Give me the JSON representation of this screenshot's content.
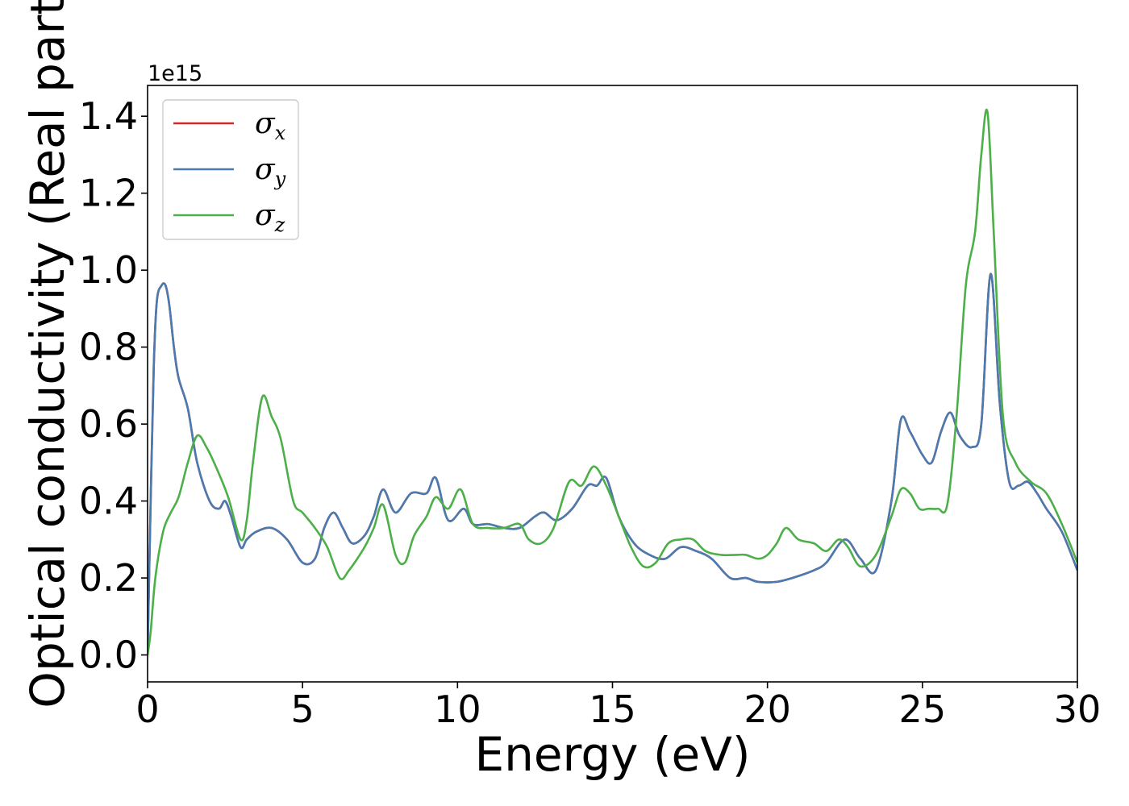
{
  "chart_data": {
    "type": "line",
    "title": "",
    "xlabel": "Energy (eV)",
    "ylabel": "Optical conductivity (Real part)",
    "y_offset_text": "1e15",
    "xlim": [
      0,
      30
    ],
    "ylim": [
      -0.07,
      1.48
    ],
    "x_ticks": [
      0,
      5,
      10,
      15,
      20,
      25,
      30
    ],
    "x_tick_labels": [
      "0",
      "5",
      "10",
      "15",
      "20",
      "25",
      "30"
    ],
    "y_ticks": [
      0.0,
      0.2,
      0.4,
      0.6,
      0.8,
      1.0,
      1.2,
      1.4
    ],
    "y_tick_labels": [
      "0.0",
      "0.2",
      "0.4",
      "0.6",
      "0.8",
      "1.0",
      "1.2",
      "1.4"
    ],
    "grid": false,
    "legend_position": "top-left",
    "series": [
      {
        "name": "σx",
        "legend_symbol": "σ",
        "legend_sub": "x",
        "color": "#d62728",
        "x": [
          0,
          0.1,
          0.2,
          0.3,
          0.45,
          0.58,
          0.7,
          0.85,
          1.0,
          1.3,
          1.6,
          2.0,
          2.3,
          2.5,
          2.7,
          3.0,
          3.2,
          3.5,
          4.0,
          4.5,
          5.0,
          5.4,
          5.7,
          6.0,
          6.3,
          6.6,
          7.0,
          7.3,
          7.6,
          8.0,
          8.5,
          9.0,
          9.3,
          9.7,
          10.2,
          10.5,
          11.0,
          11.5,
          12.0,
          12.5,
          12.8,
          13.2,
          13.7,
          14.2,
          14.5,
          14.8,
          15.2,
          15.7,
          16.2,
          16.7,
          17.2,
          17.7,
          18.2,
          18.8,
          19.3,
          19.7,
          20.3,
          20.8,
          21.5,
          21.9,
          22.5,
          23.0,
          23.5,
          24.0,
          24.3,
          24.6,
          25.0,
          25.3,
          25.6,
          25.9,
          26.2,
          26.6,
          26.9,
          27.2,
          27.5,
          27.8,
          28.1,
          28.4,
          28.7,
          29.0,
          29.5,
          30.0
        ],
        "values": [
          0.0,
          0.4,
          0.75,
          0.92,
          0.96,
          0.96,
          0.91,
          0.8,
          0.72,
          0.64,
          0.5,
          0.4,
          0.38,
          0.4,
          0.36,
          0.28,
          0.3,
          0.32,
          0.33,
          0.3,
          0.24,
          0.25,
          0.33,
          0.37,
          0.33,
          0.29,
          0.31,
          0.36,
          0.43,
          0.37,
          0.42,
          0.42,
          0.46,
          0.35,
          0.38,
          0.34,
          0.34,
          0.33,
          0.33,
          0.36,
          0.37,
          0.35,
          0.38,
          0.44,
          0.44,
          0.46,
          0.36,
          0.29,
          0.26,
          0.25,
          0.28,
          0.27,
          0.25,
          0.2,
          0.2,
          0.19,
          0.19,
          0.2,
          0.22,
          0.24,
          0.3,
          0.25,
          0.22,
          0.4,
          0.61,
          0.58,
          0.52,
          0.5,
          0.58,
          0.63,
          0.57,
          0.54,
          0.6,
          0.99,
          0.65,
          0.45,
          0.44,
          0.45,
          0.42,
          0.38,
          0.32,
          0.22
        ]
      },
      {
        "name": "σy",
        "legend_symbol": "σ",
        "legend_sub": "y",
        "color": "#4a7bb0",
        "x": [
          0,
          0.1,
          0.2,
          0.3,
          0.45,
          0.58,
          0.7,
          0.85,
          1.0,
          1.3,
          1.6,
          2.0,
          2.3,
          2.5,
          2.7,
          3.0,
          3.2,
          3.5,
          4.0,
          4.5,
          5.0,
          5.4,
          5.7,
          6.0,
          6.3,
          6.6,
          7.0,
          7.3,
          7.6,
          8.0,
          8.5,
          9.0,
          9.3,
          9.7,
          10.2,
          10.5,
          11.0,
          11.5,
          12.0,
          12.5,
          12.8,
          13.2,
          13.7,
          14.2,
          14.5,
          14.8,
          15.2,
          15.7,
          16.2,
          16.7,
          17.2,
          17.7,
          18.2,
          18.8,
          19.3,
          19.7,
          20.3,
          20.8,
          21.5,
          21.9,
          22.5,
          23.0,
          23.5,
          24.0,
          24.3,
          24.6,
          25.0,
          25.3,
          25.6,
          25.9,
          26.2,
          26.6,
          26.9,
          27.2,
          27.5,
          27.8,
          28.1,
          28.4,
          28.7,
          29.0,
          29.5,
          30.0
        ],
        "values": [
          0.0,
          0.4,
          0.75,
          0.92,
          0.96,
          0.96,
          0.91,
          0.8,
          0.72,
          0.64,
          0.5,
          0.4,
          0.38,
          0.4,
          0.36,
          0.28,
          0.3,
          0.32,
          0.33,
          0.3,
          0.24,
          0.25,
          0.33,
          0.37,
          0.33,
          0.29,
          0.31,
          0.36,
          0.43,
          0.37,
          0.42,
          0.42,
          0.46,
          0.35,
          0.38,
          0.34,
          0.34,
          0.33,
          0.33,
          0.36,
          0.37,
          0.35,
          0.38,
          0.44,
          0.44,
          0.46,
          0.36,
          0.29,
          0.26,
          0.25,
          0.28,
          0.27,
          0.25,
          0.2,
          0.2,
          0.19,
          0.19,
          0.2,
          0.22,
          0.24,
          0.3,
          0.25,
          0.22,
          0.4,
          0.61,
          0.58,
          0.52,
          0.5,
          0.58,
          0.63,
          0.57,
          0.54,
          0.6,
          0.99,
          0.65,
          0.45,
          0.44,
          0.45,
          0.42,
          0.38,
          0.32,
          0.22
        ]
      },
      {
        "name": "σz",
        "legend_symbol": "σ",
        "legend_sub": "z",
        "color": "#4daf4a",
        "x": [
          0,
          0.1,
          0.25,
          0.5,
          0.75,
          1.0,
          1.3,
          1.6,
          1.9,
          2.2,
          2.6,
          3.0,
          3.2,
          3.4,
          3.7,
          4.0,
          4.3,
          4.7,
          5.0,
          5.4,
          5.8,
          6.2,
          6.5,
          7.0,
          7.3,
          7.6,
          8.0,
          8.3,
          8.6,
          9.0,
          9.3,
          9.7,
          10.1,
          10.5,
          11.0,
          11.5,
          12.0,
          12.3,
          12.7,
          13.1,
          13.6,
          14.0,
          14.4,
          14.8,
          15.2,
          15.6,
          16.0,
          16.4,
          16.8,
          17.2,
          17.6,
          18.0,
          18.5,
          19.0,
          19.3,
          19.7,
          20.0,
          20.3,
          20.6,
          21.0,
          21.5,
          21.9,
          22.3,
          22.6,
          23.0,
          23.5,
          24.0,
          24.3,
          24.6,
          24.9,
          25.2,
          25.5,
          25.8,
          26.1,
          26.4,
          26.7,
          26.9,
          27.1,
          27.3,
          27.6,
          28.0,
          28.5,
          29.0,
          29.5,
          30.0
        ],
        "values": [
          0.0,
          0.06,
          0.2,
          0.32,
          0.37,
          0.41,
          0.5,
          0.57,
          0.54,
          0.49,
          0.41,
          0.3,
          0.35,
          0.5,
          0.67,
          0.62,
          0.56,
          0.4,
          0.37,
          0.33,
          0.28,
          0.2,
          0.22,
          0.28,
          0.33,
          0.39,
          0.26,
          0.24,
          0.31,
          0.36,
          0.41,
          0.38,
          0.43,
          0.34,
          0.33,
          0.33,
          0.34,
          0.3,
          0.29,
          0.33,
          0.45,
          0.44,
          0.49,
          0.44,
          0.36,
          0.28,
          0.23,
          0.24,
          0.29,
          0.3,
          0.3,
          0.27,
          0.26,
          0.26,
          0.26,
          0.25,
          0.26,
          0.29,
          0.33,
          0.3,
          0.29,
          0.27,
          0.3,
          0.28,
          0.23,
          0.26,
          0.36,
          0.43,
          0.42,
          0.38,
          0.38,
          0.38,
          0.39,
          0.62,
          0.96,
          1.1,
          1.3,
          1.41,
          1.1,
          0.62,
          0.5,
          0.45,
          0.42,
          0.34,
          0.24
        ]
      }
    ]
  }
}
